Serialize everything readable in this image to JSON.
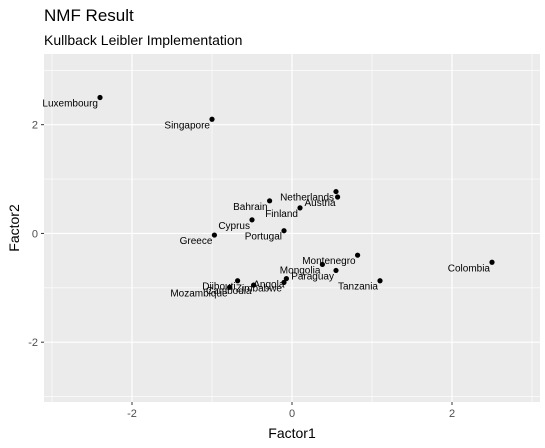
{
  "title": "NMF Result",
  "subtitle": "Kullback Leibler Implementation",
  "chart_data": {
    "type": "scatter",
    "xlabel": "Factor1",
    "ylabel": "Factor2",
    "xlim": [
      -3.1,
      3.1
    ],
    "ylim": [
      -3.1,
      3.3
    ],
    "xticks": [
      -2,
      0,
      2
    ],
    "xtick_labels": [
      "-2",
      "0",
      "2"
    ],
    "yticks": [
      -2,
      0,
      2
    ],
    "ytick_labels": [
      "-2",
      "0",
      "2"
    ],
    "grid": true,
    "background": "#ebebeb",
    "grid_color": "#ffffff",
    "point_color": "#000000",
    "points": [
      {
        "label": "Luxembourg",
        "x": -2.4,
        "y": 2.5
      },
      {
        "label": "Singapore",
        "x": -1.0,
        "y": 2.1
      },
      {
        "label": "Netherlands",
        "x": 0.55,
        "y": 0.77
      },
      {
        "label": "Austria",
        "x": 0.57,
        "y": 0.67
      },
      {
        "label": "Bahrain",
        "x": -0.28,
        "y": 0.6
      },
      {
        "label": "Finland",
        "x": 0.1,
        "y": 0.47
      },
      {
        "label": "Cyprus",
        "x": -0.5,
        "y": 0.25
      },
      {
        "label": "Portugal",
        "x": -0.1,
        "y": 0.05
      },
      {
        "label": "Greece",
        "x": -0.97,
        "y": -0.03
      },
      {
        "label": "Montenegro",
        "x": 0.82,
        "y": -0.4
      },
      {
        "label": "Colombia",
        "x": 2.5,
        "y": -0.53
      },
      {
        "label": "Mongolia",
        "x": 0.38,
        "y": -0.57
      },
      {
        "label": "Paraguay",
        "x": 0.55,
        "y": -0.68
      },
      {
        "label": "Tanzania",
        "x": 1.1,
        "y": -0.87
      },
      {
        "label": "Angola",
        "x": -0.07,
        "y": -0.83
      },
      {
        "label": "Zimbabwe",
        "x": -0.1,
        "y": -0.9
      },
      {
        "label": "Djibouti",
        "x": -0.68,
        "y": -0.87
      },
      {
        "label": "Cambodia",
        "x": -0.48,
        "y": -0.95
      },
      {
        "label": "Mozambique",
        "x": -0.78,
        "y": -0.99
      }
    ]
  }
}
